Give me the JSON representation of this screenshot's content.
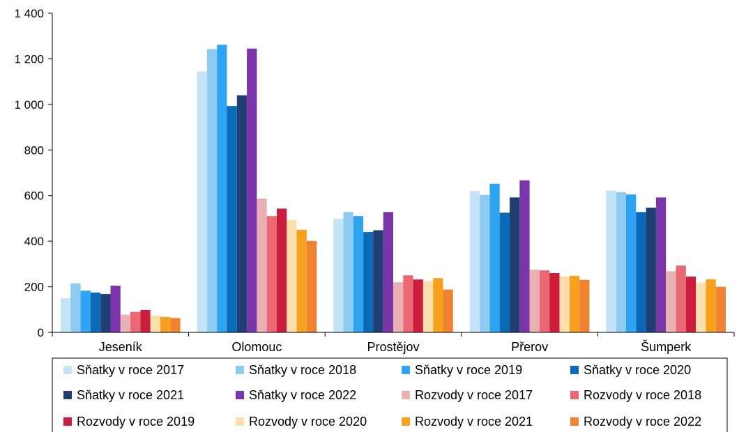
{
  "chart_data": {
    "type": "bar",
    "categories": [
      "Jeseník",
      "Olomouc",
      "Prostějov",
      "Přerov",
      "Šumperk"
    ],
    "y_ticks": [
      "0",
      "200",
      "400",
      "600",
      "800",
      "1 000",
      "1 200",
      "1 400"
    ],
    "ylim": [
      0,
      1400
    ],
    "grid": false,
    "legend_position": "bottom",
    "series": [
      {
        "name": "Sňatky v roce 2017",
        "color": "#c5e3f6",
        "values": [
          150,
          1145,
          498,
          620,
          622
        ]
      },
      {
        "name": "Sňatky v roce 2018",
        "color": "#8ecbf0",
        "values": [
          215,
          1243,
          528,
          603,
          615
        ]
      },
      {
        "name": "Sňatky v roce 2019",
        "color": "#2ea4f3",
        "values": [
          183,
          1262,
          510,
          652,
          605
        ]
      },
      {
        "name": "Sňatky v roce 2020",
        "color": "#0a6ab8",
        "values": [
          175,
          993,
          440,
          525,
          528
        ]
      },
      {
        "name": "Sňatky v roce 2021",
        "color": "#1f3e72",
        "values": [
          168,
          1040,
          448,
          592,
          547
        ]
      },
      {
        "name": "Sňatky v roce 2022",
        "color": "#7a35a8",
        "values": [
          205,
          1245,
          528,
          667,
          592
        ]
      },
      {
        "name": "Rozvody v roce 2017",
        "color": "#eab1b5",
        "values": [
          78,
          587,
          220,
          275,
          268
        ]
      },
      {
        "name": "Rozvody v roce 2018",
        "color": "#ea6874",
        "values": [
          90,
          510,
          250,
          272,
          293
        ]
      },
      {
        "name": "Rozvody v roce 2019",
        "color": "#cc1e3c",
        "values": [
          98,
          543,
          232,
          260,
          245
        ]
      },
      {
        "name": "Rozvody v roce 2020",
        "color": "#fddfae",
        "values": [
          74,
          493,
          225,
          245,
          218
        ]
      },
      {
        "name": "Rozvody v roce 2021",
        "color": "#f7a21f",
        "values": [
          68,
          450,
          238,
          248,
          233
        ]
      },
      {
        "name": "Rozvody v roce 2022",
        "color": "#f08231",
        "values": [
          63,
          401,
          188,
          230,
          200
        ]
      }
    ]
  }
}
